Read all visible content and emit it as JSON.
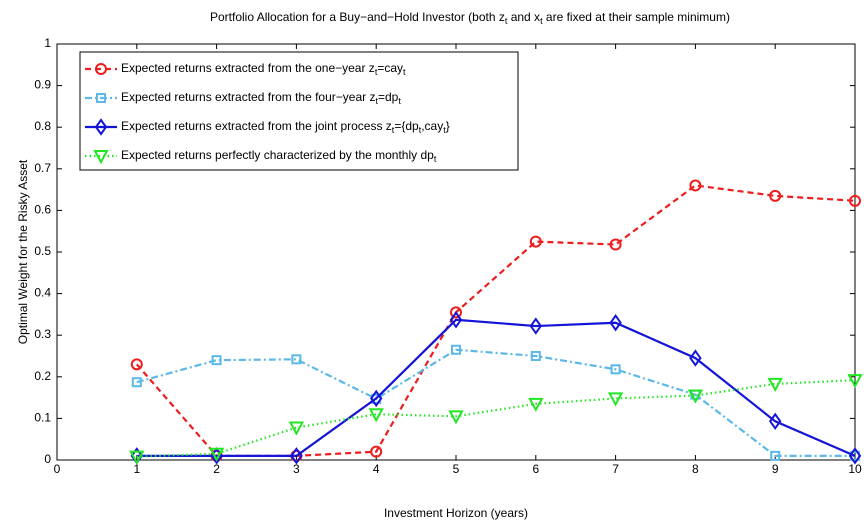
{
  "chart_data": {
    "type": "line",
    "title": "Portfolio Allocation for a Buy−and−Hold Investor (both z_t and x_t are fixed at their sample minimum)",
    "x_label": "Investment Horizon (years)",
    "y_label": "Optimal Weight for the Risky Asset",
    "x": [
      1,
      2,
      3,
      4,
      5,
      6,
      7,
      8,
      9,
      10
    ],
    "xlim": [
      0,
      10
    ],
    "xticks": [
      0,
      1,
      2,
      3,
      4,
      5,
      6,
      7,
      8,
      9,
      10
    ],
    "ylim": [
      0,
      1
    ],
    "yticks": [
      0,
      0.1,
      0.2,
      0.3,
      0.4,
      0.5,
      0.6,
      0.7,
      0.8,
      0.9,
      1
    ],
    "grid": false,
    "legend_position": "upper-left",
    "series": [
      {
        "name": "Expected returns extracted from the one−year z_t=cay_t",
        "color": "#ee1c1c",
        "line_style": "dashed",
        "marker": "circle",
        "values": [
          0.23,
          0.01,
          0.01,
          0.02,
          0.355,
          0.525,
          0.518,
          0.66,
          0.635,
          0.623
        ]
      },
      {
        "name": "Expected returns extracted from the four−year z_t=dp_t",
        "color": "#5cb8e6",
        "line_style": "dashdot",
        "marker": "square",
        "values": [
          0.187,
          0.24,
          0.242,
          0.147,
          0.265,
          0.25,
          0.218,
          0.157,
          0.01,
          0.01
        ]
      },
      {
        "name": "Expected returns extracted from the joint process z_t={dp_t,cay_t}",
        "color": "#1414d8",
        "line_style": "solid",
        "marker": "diamond",
        "values": [
          0.01,
          0.01,
          0.01,
          0.148,
          0.337,
          0.322,
          0.33,
          0.245,
          0.093,
          0.01
        ]
      },
      {
        "name": "Expected returns perfectly characterized by the monthly dp_t",
        "color": "#22e622",
        "line_style": "dotted",
        "marker": "triangle-down",
        "values": [
          0.008,
          0.015,
          0.078,
          0.11,
          0.105,
          0.135,
          0.148,
          0.155,
          0.183,
          0.192
        ]
      }
    ]
  }
}
